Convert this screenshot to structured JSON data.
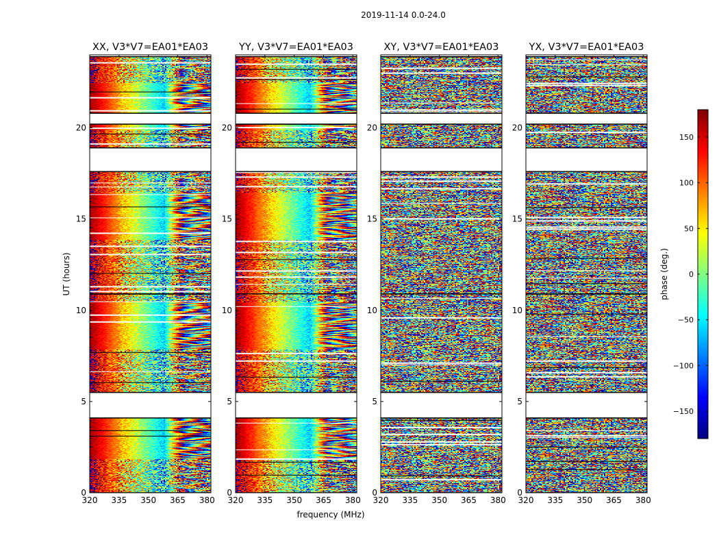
{
  "figure": {
    "suptitle": "2019-11-14 0.0-24.0",
    "xlabel": "frequency (MHz)",
    "ylabel": "UT (hours)"
  },
  "colorbar": {
    "label": "phase (deg.)",
    "range": [
      -180,
      180
    ],
    "ticks": [
      150,
      100,
      50,
      0,
      -50,
      -100,
      -150
    ],
    "tick_labels": [
      "150",
      "100",
      "50",
      "0",
      "−50",
      "−100",
      "−150"
    ],
    "colormap": "jet",
    "colors": [
      "#00007f",
      "#0000ff",
      "#0080ff",
      "#00ffff",
      "#80ff80",
      "#ffff00",
      "#ff8000",
      "#ff0000",
      "#7f0000"
    ]
  },
  "chart_data": [
    {
      "type": "heatmap",
      "title": "XX, V3*V7=EA01*EA03",
      "xlim": [
        320,
        382
      ],
      "ylim": [
        0,
        24
      ],
      "xticks": [
        320,
        335,
        350,
        365,
        380
      ],
      "yticks": [
        0,
        5,
        10,
        15,
        20
      ],
      "value": "phase (deg.)",
      "data_blocks_ut_hours": [
        [
          0.0,
          4.1
        ],
        [
          5.5,
          10.9
        ],
        [
          10.9,
          17.6
        ],
        [
          18.9,
          20.2
        ],
        [
          20.8,
          23.9
        ]
      ]
    },
    {
      "type": "heatmap",
      "title": "YY, V3*V7=EA01*EA03",
      "xlim": [
        320,
        382
      ],
      "ylim": [
        0,
        24
      ],
      "xticks": [
        320,
        335,
        350,
        365,
        380
      ],
      "yticks": [
        0,
        5,
        10,
        15,
        20
      ],
      "value": "phase (deg.)",
      "data_blocks_ut_hours": [
        [
          0.0,
          4.1
        ],
        [
          5.5,
          10.9
        ],
        [
          10.9,
          17.6
        ],
        [
          18.9,
          20.2
        ],
        [
          20.8,
          23.9
        ]
      ]
    },
    {
      "type": "heatmap",
      "title": "XY, V3*V7=EA01*EA03",
      "xlim": [
        320,
        382
      ],
      "ylim": [
        0,
        24
      ],
      "xticks": [
        320,
        335,
        350,
        365,
        380
      ],
      "yticks": [
        0,
        5,
        10,
        15,
        20
      ],
      "value": "phase (deg.)",
      "data_blocks_ut_hours": [
        [
          0.0,
          4.1
        ],
        [
          5.5,
          10.9
        ],
        [
          10.9,
          17.6
        ],
        [
          18.9,
          20.2
        ],
        [
          20.8,
          23.9
        ]
      ]
    },
    {
      "type": "heatmap",
      "title": "YX, V3*V7=EA01*EA03",
      "xlim": [
        320,
        382
      ],
      "ylim": [
        0,
        24
      ],
      "xticks": [
        320,
        335,
        350,
        365,
        380
      ],
      "yticks": [
        0,
        5,
        10,
        15,
        20
      ],
      "value": "phase (deg.)",
      "data_blocks_ut_hours": [
        [
          0.0,
          4.1
        ],
        [
          5.5,
          10.9
        ],
        [
          10.9,
          17.6
        ],
        [
          18.9,
          20.2
        ],
        [
          20.8,
          23.9
        ]
      ]
    }
  ]
}
